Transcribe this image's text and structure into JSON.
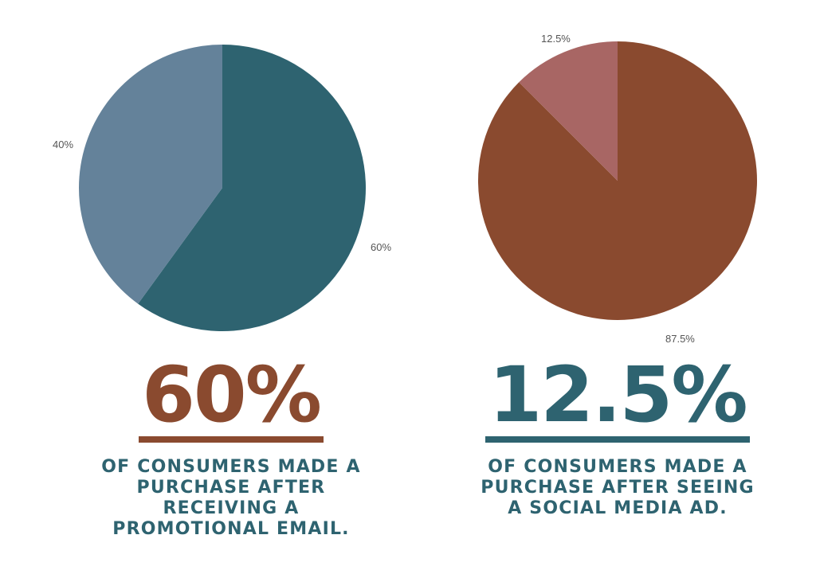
{
  "chart_data": [
    {
      "type": "pie",
      "slices": [
        {
          "label": "60%",
          "value": 60,
          "color": "#2e6370"
        },
        {
          "label": "40%",
          "value": 40,
          "color": "#64829a"
        }
      ],
      "stat": "60%",
      "stat_color": "#8a4a2f",
      "caption": "OF CONSUMERS MADE A PURCHASE AFTER RECEIVING A PROMOTIONAL EMAIL.",
      "caption_color": "#2e6370"
    },
    {
      "type": "pie",
      "slices": [
        {
          "label": "87.5%",
          "value": 87.5,
          "color": "#8a4a2f"
        },
        {
          "label": "12.5%",
          "value": 12.5,
          "color": "#a86664"
        }
      ],
      "stat": "12.5%",
      "stat_color": "#2e6370",
      "caption": "OF CONSUMERS MADE A PURCHASE AFTER SEEING A SOCIAL MEDIA AD.",
      "caption_color": "#2e6370"
    }
  ]
}
